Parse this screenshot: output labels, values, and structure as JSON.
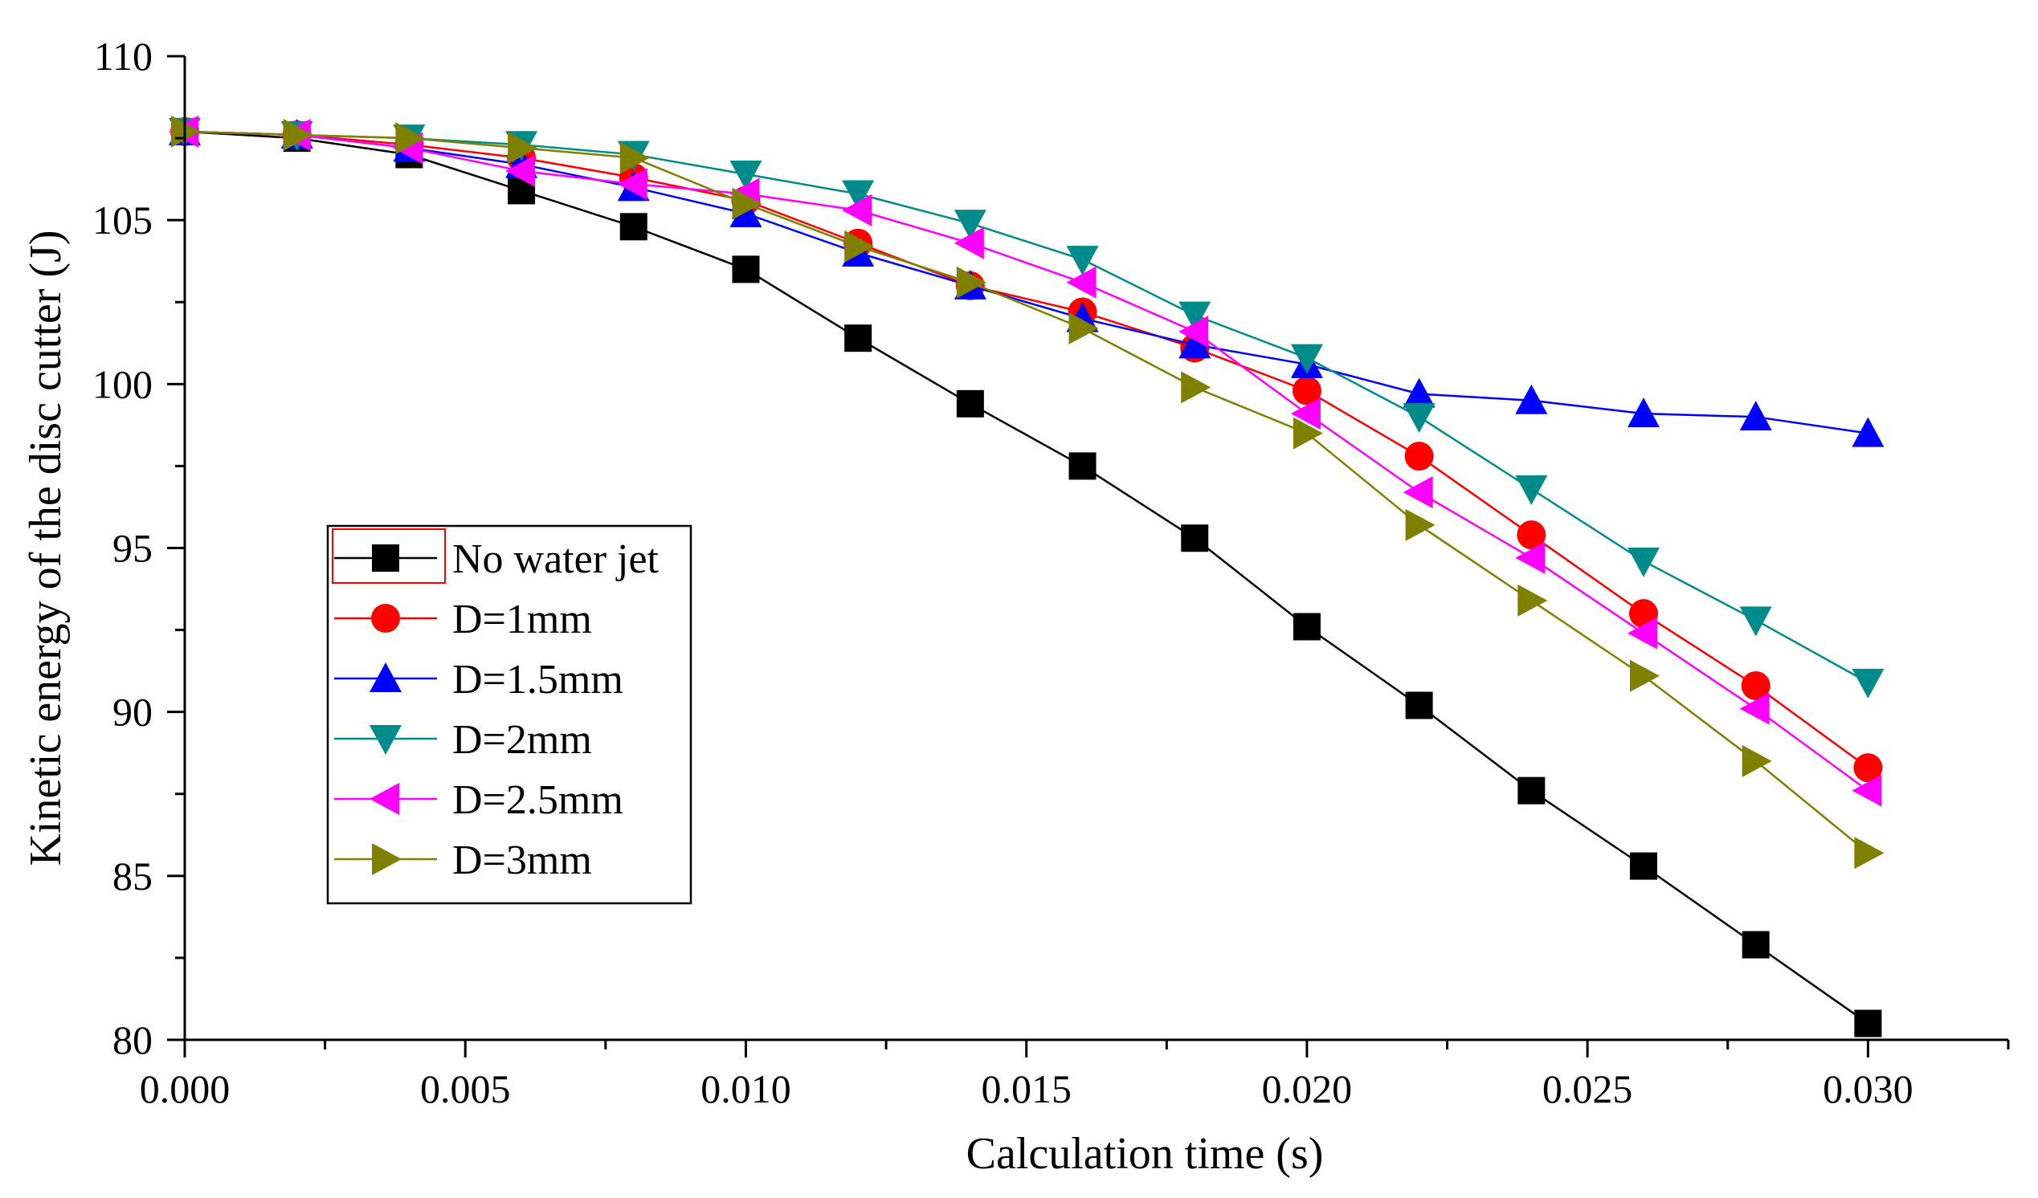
{
  "chart_data": {
    "type": "line",
    "title": "",
    "xlabel": "Calculation time (s)",
    "ylabel": "Kinetic energy of the disc cutter (J)",
    "xlim": [
      0,
      0.0325
    ],
    "ylim": [
      80,
      110
    ],
    "x_ticks": [
      "0.000",
      "0.005",
      "0.010",
      "0.015",
      "0.020",
      "0.025",
      "0.030"
    ],
    "y_ticks": [
      "80",
      "85",
      "90",
      "95",
      "100",
      "105",
      "110"
    ],
    "legend_position": "center-left",
    "x": [
      0,
      0.002,
      0.004,
      0.006,
      0.008,
      0.01,
      0.012,
      0.014,
      0.016,
      0.018,
      0.02,
      0.022,
      0.024,
      0.026,
      0.028,
      0.03
    ],
    "series": [
      {
        "name": "No water jet",
        "color": "#000000",
        "marker": "square",
        "values": [
          107.7,
          107.5,
          107.0,
          105.9,
          104.8,
          103.5,
          101.4,
          99.4,
          97.5,
          95.3,
          92.6,
          90.2,
          87.6,
          85.3,
          82.9,
          80.5
        ]
      },
      {
        "name": "D=1mm",
        "color": "#ff0000",
        "marker": "circle",
        "values": [
          107.7,
          107.6,
          107.3,
          106.9,
          106.3,
          105.6,
          104.3,
          103.0,
          102.2,
          101.1,
          99.8,
          97.8,
          95.4,
          93.0,
          90.8,
          88.3
        ]
      },
      {
        "name": "D=1.5mm",
        "color": "#0000ff",
        "marker": "triangle-up",
        "values": [
          107.7,
          107.6,
          107.2,
          106.7,
          106.0,
          105.2,
          104.0,
          103.0,
          102.0,
          101.2,
          100.6,
          99.7,
          99.5,
          99.1,
          99.0,
          98.5
        ]
      },
      {
        "name": "D=2mm",
        "color": "#008b8b",
        "marker": "triangle-down",
        "values": [
          107.7,
          107.6,
          107.5,
          107.3,
          107.0,
          106.4,
          105.8,
          104.9,
          103.8,
          102.1,
          100.8,
          99.0,
          96.8,
          94.6,
          92.8,
          90.9
        ]
      },
      {
        "name": "D=2.5mm",
        "color": "#ff00ff",
        "marker": "triangle-left",
        "values": [
          107.7,
          107.6,
          107.2,
          106.5,
          106.1,
          105.8,
          105.3,
          104.3,
          103.1,
          101.6,
          99.1,
          96.7,
          94.7,
          92.4,
          90.1,
          87.6
        ]
      },
      {
        "name": "D=3mm",
        "color": "#808000",
        "marker": "triangle-right",
        "values": [
          107.7,
          107.6,
          107.5,
          107.2,
          106.9,
          105.5,
          104.2,
          103.1,
          101.7,
          99.9,
          98.5,
          95.7,
          93.4,
          91.1,
          88.5,
          85.7
        ]
      }
    ]
  }
}
